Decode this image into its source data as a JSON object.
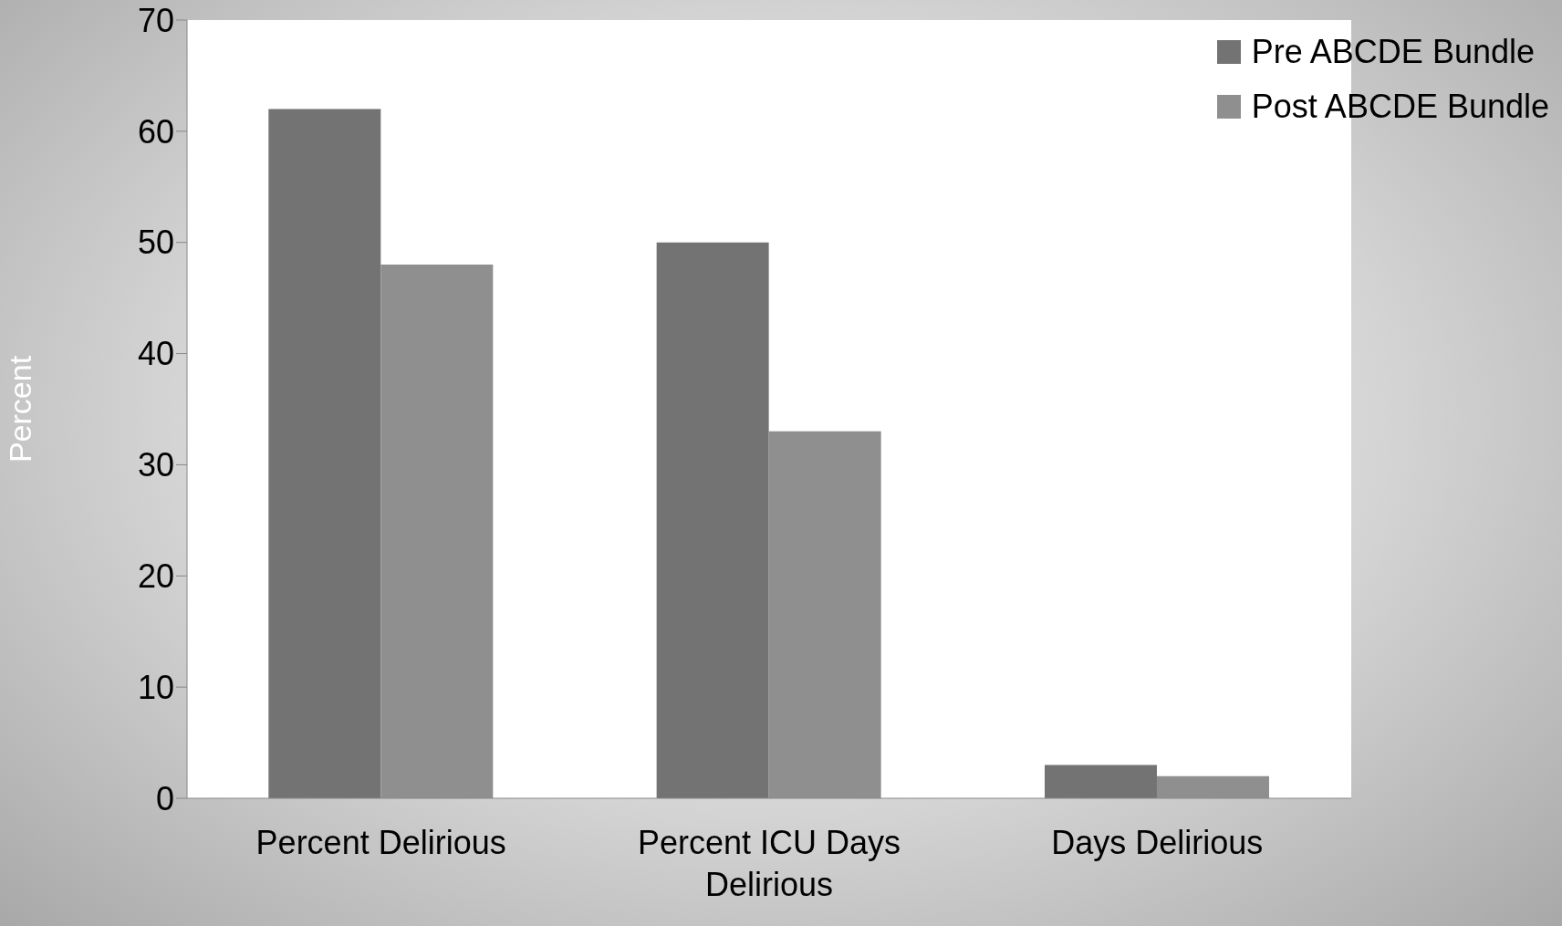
{
  "chart_data": {
    "type": "bar",
    "ylabel": "Percent",
    "categories": [
      "Percent Delirious",
      "Percent ICU Days Delirious",
      "Days Delirious"
    ],
    "series": [
      {
        "name": "Pre ABCDE Bundle",
        "color": "#737373",
        "values": [
          62,
          50,
          3
        ]
      },
      {
        "name": "Post ABCDE Bundle",
        "color": "#8f8f8f",
        "values": [
          48,
          33,
          2
        ]
      }
    ],
    "ylim": [
      0,
      70
    ],
    "yticks": [
      0,
      10,
      20,
      30,
      40,
      50,
      60,
      70
    ],
    "grid": false,
    "legend": "top right"
  }
}
